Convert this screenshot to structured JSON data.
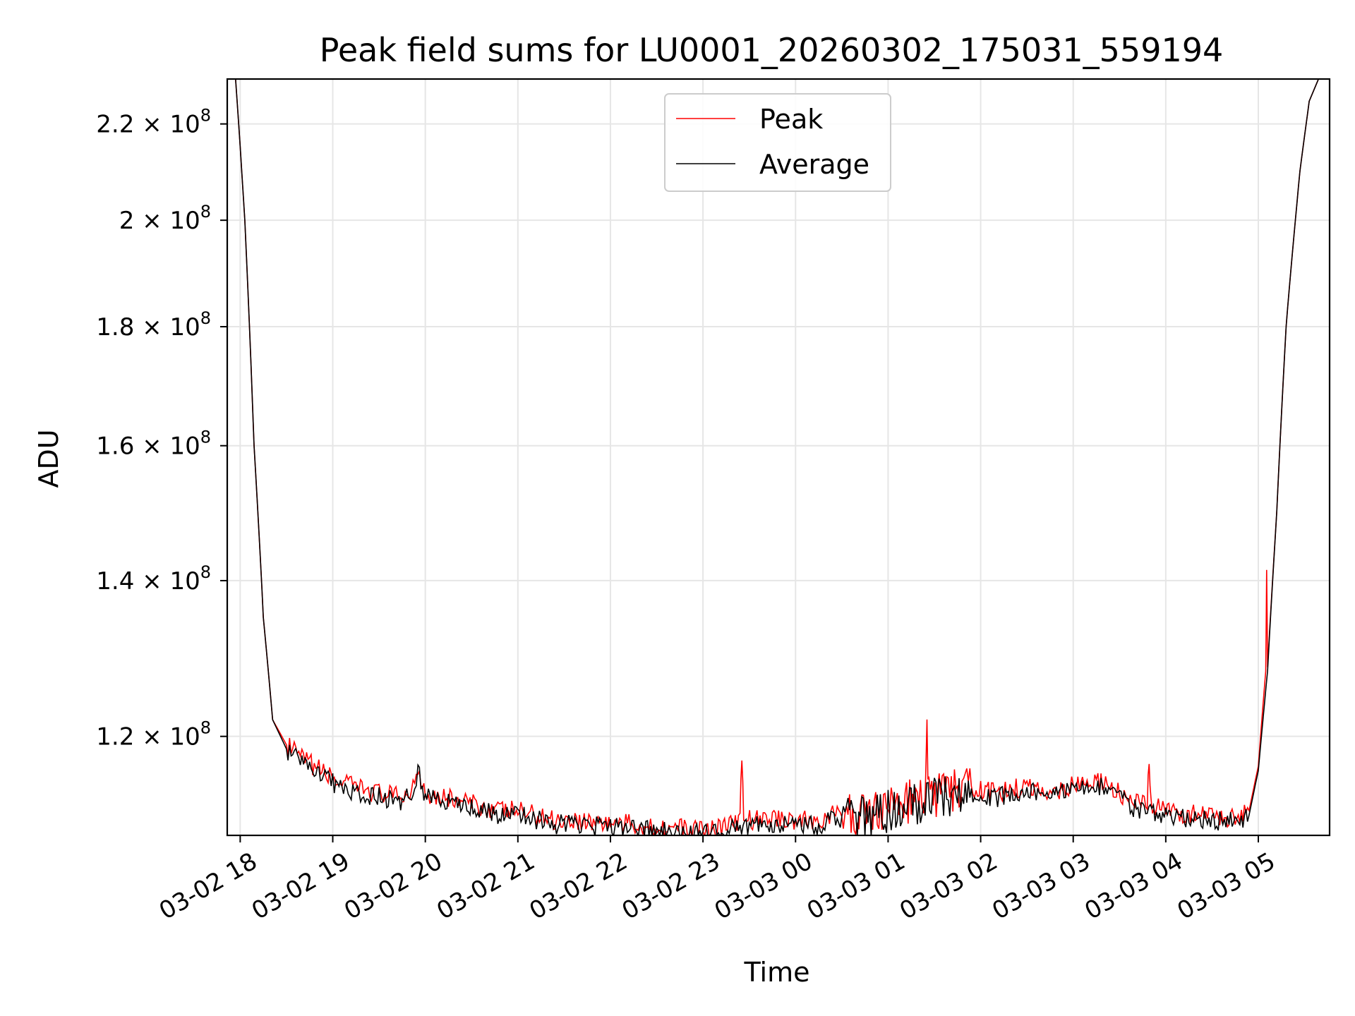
{
  "chart_data": {
    "type": "line",
    "title": "Peak field sums for LU0001_20260302_175031_559194",
    "xlabel": "Time",
    "ylabel": "ADU",
    "yscale": "log",
    "ylim": [
      108800000,
      230000000
    ],
    "xlim_hours": [
      17.86,
      5.77
    ],
    "grid": true,
    "legend_position": "upper-center",
    "x_tick_labels": [
      "03-02 18",
      "03-02 19",
      "03-02 20",
      "03-02 21",
      "03-02 22",
      "03-02 23",
      "03-03 00",
      "03-03 01",
      "03-03 02",
      "03-03 03",
      "03-03 04",
      "03-03 05"
    ],
    "x_tick_hours": [
      18,
      19,
      20,
      21,
      22,
      23,
      24,
      25,
      26,
      27,
      28,
      29
    ],
    "y_ticks": [
      {
        "value": 120000000,
        "mantissa": "1.2",
        "times": "×",
        "base": "10",
        "exp": "8"
      },
      {
        "value": 140000000,
        "mantissa": "1.4",
        "times": "×",
        "base": "10",
        "exp": "8"
      },
      {
        "value": 160000000,
        "mantissa": "1.6",
        "times": "×",
        "base": "10",
        "exp": "8"
      },
      {
        "value": 180000000,
        "mantissa": "1.8",
        "times": "×",
        "base": "10",
        "exp": "8"
      },
      {
        "value": 200000000,
        "mantissa": "2",
        "times": "×",
        "base": "10",
        "exp": "8"
      },
      {
        "value": 220000000,
        "mantissa": "2.2",
        "times": "×",
        "base": "10",
        "exp": "8"
      }
    ],
    "series": [
      {
        "name": "Peak",
        "color": "#ff0000"
      },
      {
        "name": "Average",
        "color": "#000000"
      }
    ],
    "average_points": {
      "hours": [
        17.86,
        17.95,
        18.05,
        18.15,
        18.25,
        18.35,
        18.5,
        18.65,
        18.8,
        18.95,
        19.1,
        19.3,
        19.5,
        19.7,
        19.85,
        19.92,
        20.0,
        20.2,
        20.4,
        20.6,
        20.8,
        21.0,
        21.2,
        21.4,
        21.6,
        21.8,
        22.0,
        22.2,
        22.4,
        22.6,
        22.8,
        23.0,
        23.2,
        23.4,
        23.6,
        23.8,
        24.0,
        24.2,
        24.4,
        24.6,
        24.8,
        25.0,
        25.2,
        25.4,
        25.6,
        25.8,
        26.0,
        26.2,
        26.4,
        26.6,
        26.8,
        27.0,
        27.2,
        27.4,
        27.6,
        27.8,
        28.0,
        28.2,
        28.4,
        28.6,
        28.8,
        28.9,
        29.0,
        29.1,
        29.2,
        29.3,
        29.45,
        29.55,
        29.65,
        29.77
      ],
      "values": [
        230000000,
        230000000,
        200000000,
        160000000,
        135000000,
        122000000,
        118500000,
        117000000,
        116000000,
        115000000,
        114000000,
        113500000,
        113000000,
        112500000,
        113000000,
        116000000,
        113000000,
        112500000,
        112000000,
        111500000,
        111000000,
        111000000,
        110500000,
        110000000,
        110000000,
        109800000,
        109700000,
        109500000,
        109300000,
        109200000,
        109000000,
        109000000,
        109200000,
        109800000,
        110000000,
        110200000,
        110000000,
        109800000,
        110500000,
        110500000,
        111000000,
        111500000,
        112000000,
        112500000,
        113000000,
        113500000,
        113200000,
        113000000,
        113500000,
        113500000,
        113000000,
        114000000,
        114300000,
        113800000,
        112000000,
        111500000,
        111000000,
        110700000,
        110500000,
        110300000,
        110200000,
        111000000,
        116000000,
        128000000,
        150000000,
        180000000,
        210000000,
        225000000,
        230000000,
        230000000
      ]
    },
    "peak_points": {
      "hours": [
        17.86,
        17.95,
        18.05,
        18.15,
        18.25,
        18.35,
        18.5,
        18.65,
        18.8,
        18.95,
        19.1,
        19.3,
        19.5,
        19.7,
        19.85,
        19.92,
        20.0,
        20.2,
        20.4,
        20.6,
        20.8,
        21.0,
        21.2,
        21.4,
        21.6,
        21.8,
        22.0,
        22.2,
        22.4,
        22.6,
        22.8,
        23.0,
        23.2,
        23.4,
        23.42,
        23.44,
        23.6,
        23.8,
        24.0,
        24.2,
        24.4,
        24.6,
        24.8,
        25.0,
        25.2,
        25.4,
        25.42,
        25.44,
        25.6,
        25.8,
        26.0,
        26.2,
        26.4,
        26.6,
        26.8,
        27.0,
        27.2,
        27.4,
        27.6,
        27.8,
        27.82,
        27.84,
        28.0,
        28.2,
        28.4,
        28.6,
        28.8,
        28.9,
        29.0,
        29.08,
        29.09,
        29.1,
        29.2,
        29.3,
        29.45,
        29.55,
        29.65,
        29.77
      ],
      "values": [
        230000000,
        230000000,
        200000000,
        160000000,
        135000000,
        122000000,
        119000000,
        117500000,
        116500000,
        115500000,
        114500000,
        114000000,
        113500000,
        113000000,
        113500000,
        116500000,
        113500000,
        113000000,
        112500000,
        112000000,
        111500000,
        111500000,
        111000000,
        110500000,
        110500000,
        110300000,
        110200000,
        110000000,
        109800000,
        109700000,
        109500000,
        109500000,
        109700000,
        110300000,
        118000000,
        110500000,
        110500000,
        110700000,
        110500000,
        110300000,
        111000000,
        111000000,
        111500000,
        112000000,
        112500000,
        113000000,
        120000000,
        113000000,
        113500000,
        114000000,
        113700000,
        113500000,
        114000000,
        114000000,
        113500000,
        114500000,
        114800000,
        114300000,
        112500000,
        112000000,
        117500000,
        112000000,
        111500000,
        111200000,
        111000000,
        110800000,
        110700000,
        111500000,
        116500000,
        128000000,
        141500000,
        128500000,
        150000000,
        180000000,
        210000000,
        225000000,
        230000000,
        230000000
      ]
    }
  }
}
